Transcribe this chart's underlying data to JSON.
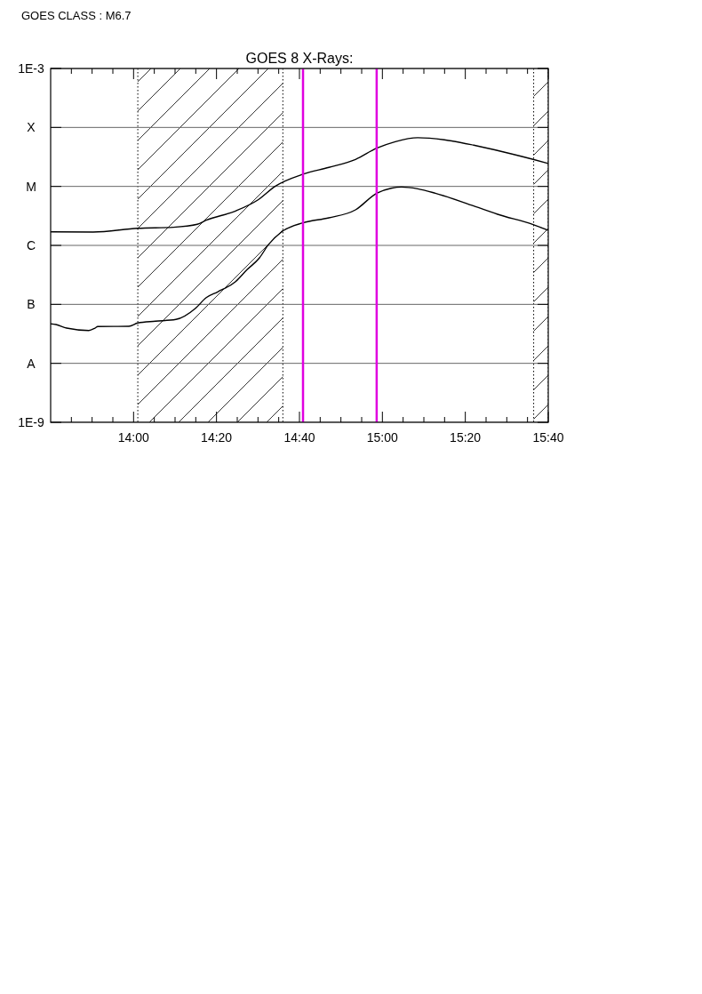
{
  "chart_data": {
    "type": "line",
    "title": "GOES 8 X-Rays:",
    "annotations": [
      "GOES CLASS : M6.7"
    ],
    "log": "y",
    "grid": "y",
    "xlim": [
      13.6667,
      15.6667
    ],
    "ylim": [
      1e-09,
      0.001
    ],
    "xticks": [
      {
        "value": 13.75,
        "label": null
      },
      {
        "value": 13.8333,
        "label": null
      },
      {
        "value": 13.9167,
        "label": null
      },
      {
        "value": 14,
        "label": "14:00"
      },
      {
        "value": 14.0833,
        "label": null
      },
      {
        "value": 14.1667,
        "label": null
      },
      {
        "value": 14.25,
        "label": null
      },
      {
        "value": 14.3333,
        "label": "14:20"
      },
      {
        "value": 14.4167,
        "label": null
      },
      {
        "value": 14.5,
        "label": null
      },
      {
        "value": 14.5833,
        "label": null
      },
      {
        "value": 14.6667,
        "label": "14:40"
      },
      {
        "value": 14.75,
        "label": null
      },
      {
        "value": 14.8333,
        "label": null
      },
      {
        "value": 14.9167,
        "label": null
      },
      {
        "value": 15,
        "label": "15:00"
      },
      {
        "value": 15.0833,
        "label": null
      },
      {
        "value": 15.1667,
        "label": null
      },
      {
        "value": 15.25,
        "label": null
      },
      {
        "value": 15.3333,
        "label": "15:20"
      },
      {
        "value": 15.4167,
        "label": null
      },
      {
        "value": 15.5,
        "label": null
      },
      {
        "value": 15.5833,
        "label": null
      },
      {
        "value": 15.6667,
        "label": "15:40"
      }
    ],
    "yticks": [
      {
        "value": 1e-09,
        "label": "1E-9"
      },
      {
        "value": 1e-08,
        "label": "A"
      },
      {
        "value": 1e-07,
        "label": "B"
      },
      {
        "value": 1e-06,
        "label": "C"
      },
      {
        "value": 1e-05,
        "label": "M"
      },
      {
        "value": 0.0001,
        "label": "X"
      },
      {
        "value": 0.001,
        "label": "1E-3"
      }
    ],
    "bands": [
      {
        "axis": "x",
        "from": 14.017,
        "to": 14.6,
        "color": "#000000"
      },
      {
        "axis": "x",
        "from": 15.608,
        "to": 15.6667,
        "color": "#000000"
      }
    ],
    "ref_lines": [
      {
        "axis": "x",
        "value": 14.681,
        "color": "#e000e0"
      },
      {
        "axis": "x",
        "value": 14.977,
        "color": "#e000e0"
      }
    ],
    "series": [
      {
        "color": "#000000",
        "x": [
          13.667,
          13.838,
          14.017,
          14.16,
          14.256,
          14.292,
          14.41,
          14.499,
          14.57,
          14.681,
          14.785,
          14.892,
          14.977,
          15.052,
          15.142,
          15.249,
          15.367,
          15.488,
          15.606,
          15.6667
        ],
        "values": [
          1.7e-06,
          1.68e-06,
          1.95e-06,
          2.03e-06,
          2.28e-06,
          2.67e-06,
          3.83e-06,
          5.87e-06,
          1.01e-05,
          1.61e-05,
          2.1e-05,
          2.87e-05,
          4.44e-05,
          5.74e-05,
          6.7e-05,
          6.16e-05,
          5e-05,
          3.83e-05,
          2.87e-05,
          2.44e-05
        ]
      },
      {
        "color": "#000000",
        "x": [
          13.667,
          13.688,
          13.731,
          13.82,
          13.845,
          13.856,
          13.981,
          14.017,
          14.088,
          14.17,
          14.249,
          14.292,
          14.338,
          14.41,
          14.456,
          14.506,
          14.542,
          14.595,
          14.681,
          14.785,
          14.892,
          14.977,
          15.035,
          15.077,
          15.142,
          15.213,
          15.367,
          15.463,
          15.606,
          15.6667
        ],
        "values": [
          4.67e-08,
          4.55e-08,
          3.96e-08,
          3.61e-08,
          3.96e-08,
          4.2e-08,
          4.25e-08,
          4.83e-08,
          5.18e-08,
          5.55e-08,
          8.59e-08,
          1.3e-07,
          1.63e-07,
          2.43e-07,
          3.87e-07,
          6.15e-07,
          1.03e-06,
          1.7e-06,
          2.41e-06,
          2.93e-06,
          4.01e-06,
          7.67e-06,
          9.31e-06,
          9.77e-06,
          9.12e-06,
          7.67e-06,
          4.66e-06,
          3.37e-06,
          2.25e-06,
          1.8e-06
        ]
      }
    ]
  }
}
